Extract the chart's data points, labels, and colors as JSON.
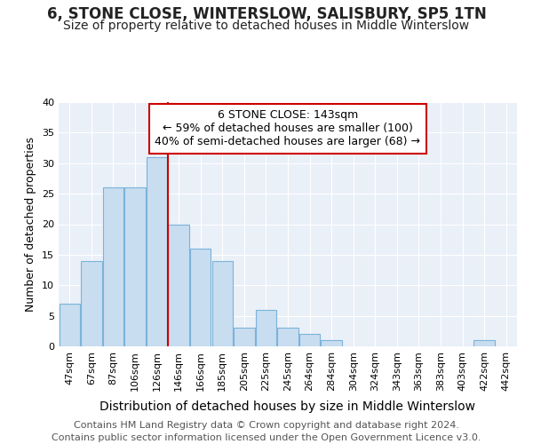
{
  "title": "6, STONE CLOSE, WINTERSLOW, SALISBURY, SP5 1TN",
  "subtitle": "Size of property relative to detached houses in Middle Winterslow",
  "xlabel": "Distribution of detached houses by size in Middle Winterslow",
  "ylabel": "Number of detached properties",
  "bin_labels": [
    "47sqm",
    "67sqm",
    "87sqm",
    "106sqm",
    "126sqm",
    "146sqm",
    "166sqm",
    "185sqm",
    "205sqm",
    "225sqm",
    "245sqm",
    "264sqm",
    "284sqm",
    "304sqm",
    "324sqm",
    "343sqm",
    "363sqm",
    "383sqm",
    "403sqm",
    "422sqm",
    "442sqm"
  ],
  "bar_heights": [
    7,
    14,
    26,
    26,
    31,
    20,
    16,
    14,
    3,
    6,
    3,
    2,
    1,
    0,
    0,
    0,
    0,
    0,
    0,
    1,
    0
  ],
  "bar_color": "#c9ddf0",
  "bar_edge_color": "#7ab3d9",
  "vline_color": "#cc0000",
  "ylim": [
    0,
    40
  ],
  "yticks": [
    0,
    5,
    10,
    15,
    20,
    25,
    30,
    35,
    40
  ],
  "marker_label": "6 STONE CLOSE: 143sqm",
  "annotation_line1": "← 59% of detached houses are smaller (100)",
  "annotation_line2": "40% of semi-detached houses are larger (68) →",
  "annotation_box_color": "#ffffff",
  "annotation_box_edge": "#cc0000",
  "footer_line1": "Contains HM Land Registry data © Crown copyright and database right 2024.",
  "footer_line2": "Contains public sector information licensed under the Open Government Licence v3.0.",
  "bg_color": "#ffffff",
  "plot_bg_color": "#eaf0f8",
  "grid_color": "#ffffff",
  "title_fontsize": 12,
  "subtitle_fontsize": 10,
  "xlabel_fontsize": 10,
  "ylabel_fontsize": 9,
  "tick_fontsize": 8,
  "annot_fontsize": 9,
  "footer_fontsize": 8
}
